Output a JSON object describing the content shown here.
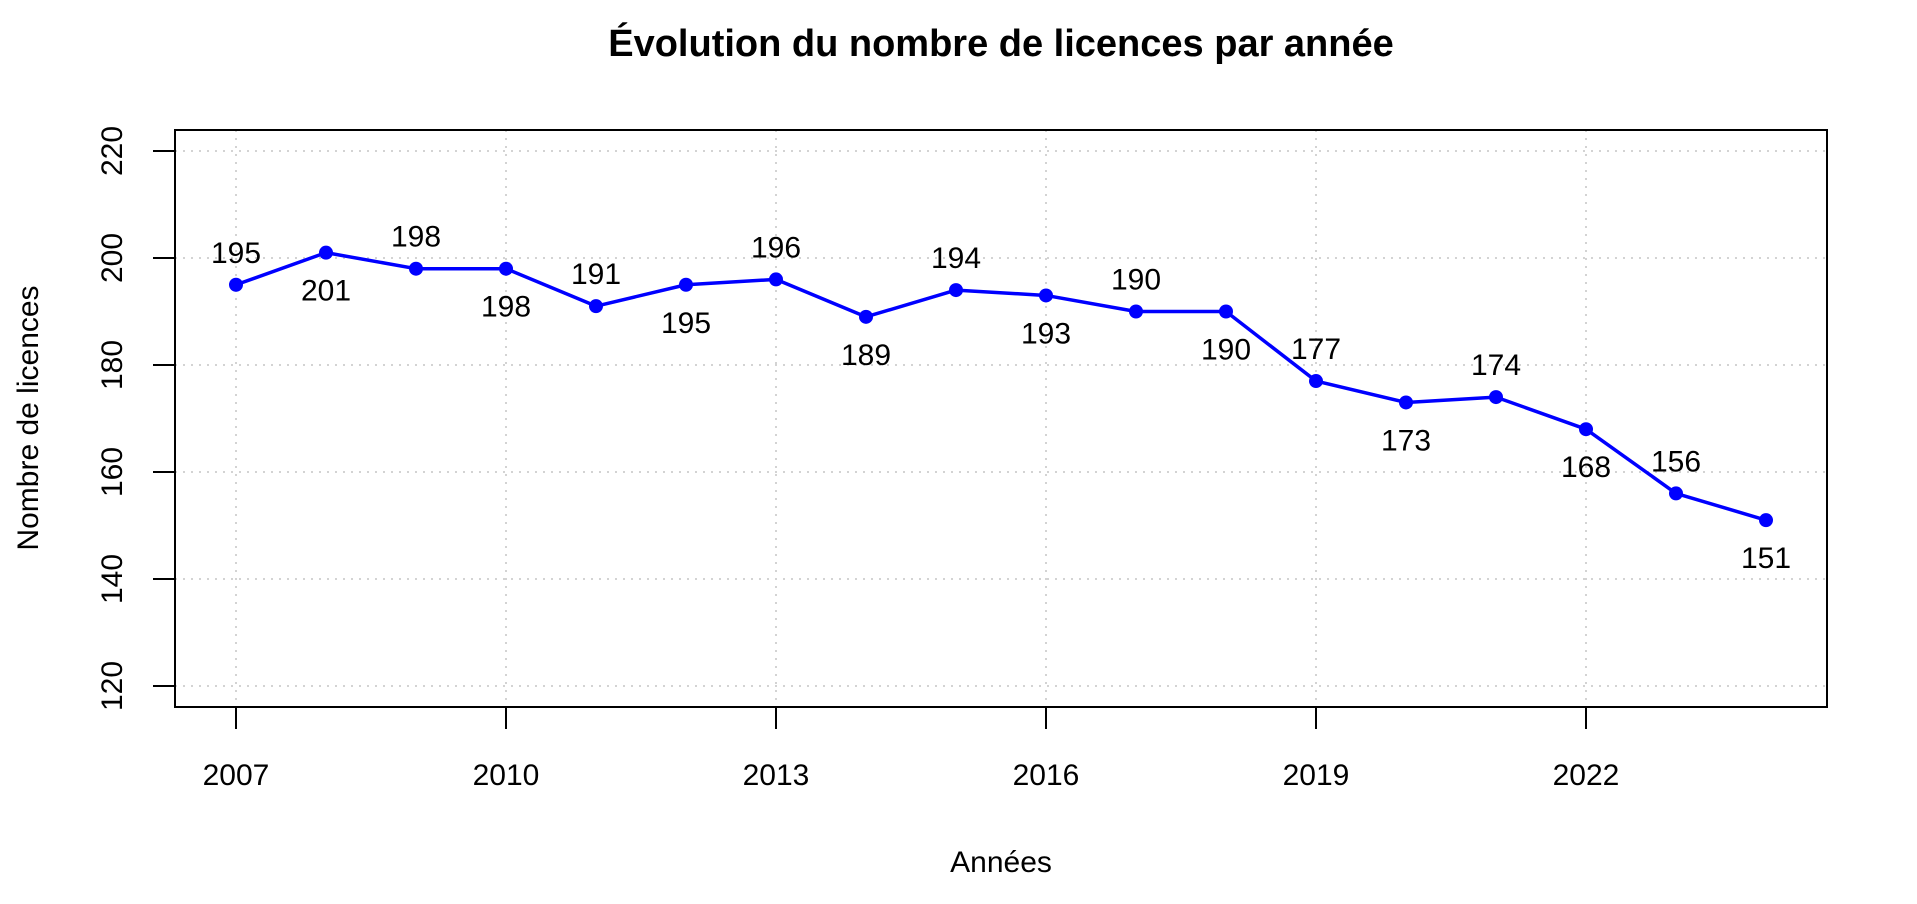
{
  "chart_data": {
    "type": "line",
    "title": "Évolution du nombre de licences par année",
    "xlabel": "Années",
    "ylabel": "Nombre de licences",
    "x": [
      2007,
      2008,
      2009,
      2010,
      2011,
      2012,
      2013,
      2014,
      2015,
      2016,
      2017,
      2018,
      2019,
      2020,
      2021,
      2022,
      2023,
      2024
    ],
    "series": [
      {
        "name": "Licences",
        "values": [
          195,
          201,
          198,
          198,
          191,
          195,
          196,
          189,
          194,
          193,
          190,
          190,
          177,
          173,
          174,
          168,
          156,
          151
        ],
        "color": "#0000ff"
      }
    ],
    "label_positions": [
      "above",
      "below",
      "above",
      "below",
      "above",
      "below",
      "above",
      "below",
      "above",
      "below",
      "above",
      "below",
      "above",
      "below",
      "above",
      "below",
      "above",
      "below"
    ],
    "xticks": [
      2007,
      2010,
      2013,
      2016,
      2019,
      2022
    ],
    "yticks": [
      120,
      140,
      160,
      180,
      200,
      220
    ],
    "xlim": [
      2006.55,
      2024.95
    ],
    "ylim": [
      120,
      220
    ],
    "grid": true,
    "grid_color": "#d3d3d3"
  }
}
